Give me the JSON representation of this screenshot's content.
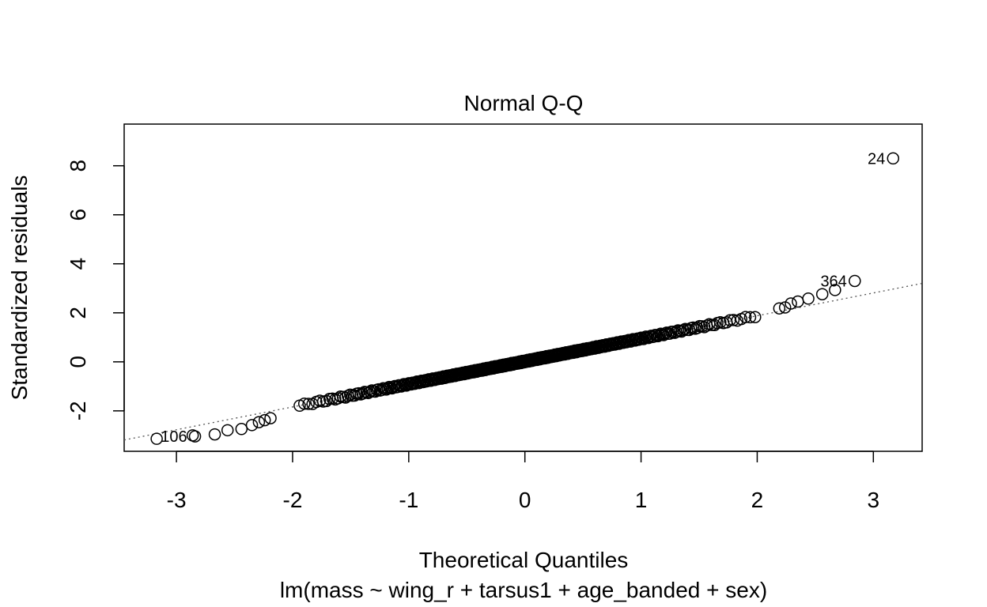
{
  "chart_data": {
    "type": "scatter",
    "title": "Normal Q-Q",
    "xlabel": "Theoretical Quantiles",
    "subtitle": "lm(mass ~ wing_r + tarsus1 + age_banded + sex)",
    "ylabel": "Standardized residuals",
    "xlim": [
      -3.45,
      3.42
    ],
    "ylim": [
      -3.65,
      9.7
    ],
    "x_ticks": [
      -3,
      -2,
      -1,
      0,
      1,
      2,
      3
    ],
    "y_ticks": [
      -2,
      0,
      2,
      4,
      6,
      8
    ],
    "reference_line": {
      "slope": 0.93,
      "intercept": 0.02,
      "style": "dotted"
    },
    "n_points": 400,
    "upper_tail": [
      {
        "x": 3.17,
        "y": 8.3,
        "label": "24"
      },
      {
        "x": 2.84,
        "y": 3.3,
        "label": "364"
      },
      {
        "x": 2.67,
        "y": 2.93
      },
      {
        "x": 2.56,
        "y": 2.76
      },
      {
        "x": 2.44,
        "y": 2.58
      },
      {
        "x": 2.35,
        "y": 2.46
      },
      {
        "x": 2.29,
        "y": 2.38
      },
      {
        "x": 2.24,
        "y": 2.22
      },
      {
        "x": 2.19,
        "y": 2.18
      }
    ],
    "lower_tail": [
      {
        "x": -3.17,
        "y": -3.14
      },
      {
        "x": -2.84,
        "y": -3.04,
        "label": "106"
      },
      {
        "x": -2.86,
        "y": -3.0
      },
      {
        "x": -2.67,
        "y": -2.96
      },
      {
        "x": -2.56,
        "y": -2.79
      },
      {
        "x": -2.44,
        "y": -2.74
      },
      {
        "x": -2.35,
        "y": -2.58
      },
      {
        "x": -2.29,
        "y": -2.46
      },
      {
        "x": -2.24,
        "y": -2.38
      },
      {
        "x": -2.19,
        "y": -2.3
      }
    ]
  }
}
